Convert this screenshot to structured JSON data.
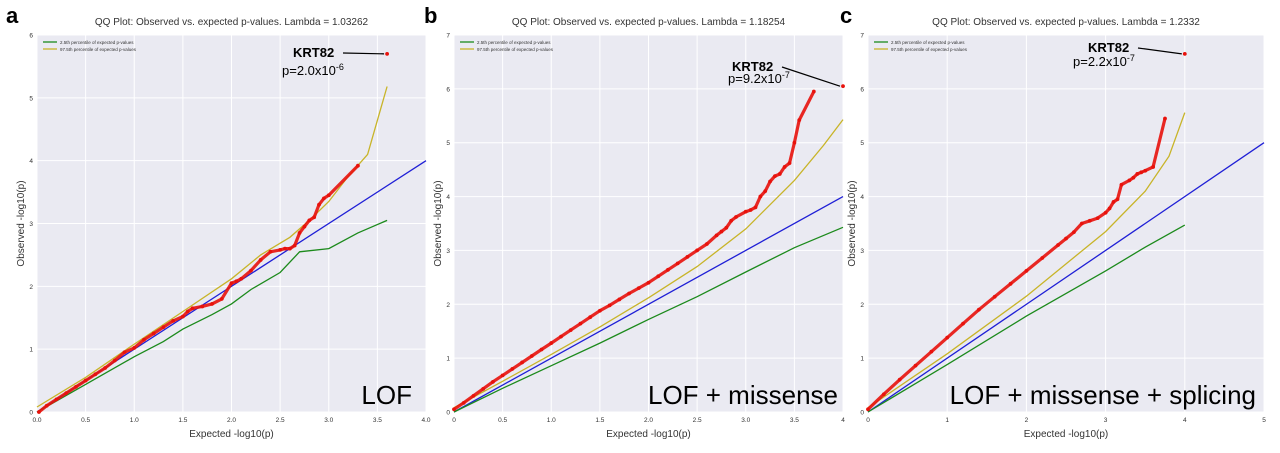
{
  "figure": {
    "panels": [
      {
        "letter": "a",
        "label": "LOF"
      },
      {
        "letter": "b",
        "label": "LOF + missense"
      },
      {
        "letter": "c",
        "label": "LOF + missense + splicing"
      }
    ]
  },
  "colors": {
    "background": "#eaeaf2",
    "grid": "#ffffff",
    "points": "#e8120c",
    "points_edge": "#b30000",
    "expected_line": "#1f1fd6",
    "lower_band": "#1c8a1c",
    "upper_band": "#c8b428",
    "callout_line": "#000000"
  },
  "chart_data": [
    {
      "type": "scatter",
      "title": "QQ Plot: Observed vs. expected p-values. Lambda = 1.03262",
      "xlabel": "Expected -log10(p)",
      "ylabel": "Observed -log10(p)",
      "xlim": [
        0,
        4.0
      ],
      "ylim": [
        0,
        6
      ],
      "xticks": [
        "0.0",
        "0.5",
        "1.0",
        "1.5",
        "2.0",
        "2.5",
        "3.0",
        "3.5",
        "4.0"
      ],
      "yticks": [
        "0",
        "1",
        "2",
        "3",
        "4",
        "5",
        "6"
      ],
      "grid": true,
      "legend": [
        "2.5th percentile of expected p-values",
        "97.5th percentile of expected p-values"
      ],
      "legend_position": "top-left",
      "expected_line": {
        "x": [
          0,
          4.0
        ],
        "y": [
          0,
          4.0
        ]
      },
      "lower_band": {
        "name": "2.5th percentile of expected p-values",
        "x": [
          0,
          0.5,
          1.0,
          1.3,
          1.5,
          1.8,
          2.0,
          2.2,
          2.5,
          2.7,
          3.0,
          3.3,
          3.6
        ],
        "y": [
          0,
          0.44,
          0.88,
          1.12,
          1.32,
          1.55,
          1.72,
          1.95,
          2.22,
          2.55,
          2.6,
          2.85,
          3.05
        ]
      },
      "upper_band": {
        "name": "97.5th percentile of expected p-values",
        "x": [
          0,
          0.5,
          1.0,
          1.5,
          2.0,
          2.3,
          2.6,
          2.8,
          3.0,
          3.2,
          3.4,
          3.6
        ],
        "y": [
          0.08,
          0.55,
          1.08,
          1.6,
          2.12,
          2.5,
          2.78,
          3.05,
          3.35,
          3.75,
          4.1,
          5.18
        ]
      },
      "points": {
        "x": [
          0.02,
          0.1,
          0.2,
          0.3,
          0.4,
          0.5,
          0.6,
          0.7,
          0.8,
          0.9,
          1.0,
          1.1,
          1.2,
          1.3,
          1.4,
          1.5,
          1.55,
          1.6,
          1.7,
          1.8,
          1.9,
          2.0,
          2.05,
          2.1,
          2.2,
          2.3,
          2.4,
          2.5,
          2.55,
          2.6,
          2.65,
          2.7,
          2.75,
          2.8,
          2.85,
          2.9,
          2.95,
          3.0,
          3.3,
          3.6
        ],
        "y": [
          0.0,
          0.1,
          0.2,
          0.3,
          0.4,
          0.5,
          0.6,
          0.7,
          0.82,
          0.95,
          1.02,
          1.15,
          1.25,
          1.35,
          1.45,
          1.52,
          1.6,
          1.65,
          1.68,
          1.72,
          1.8,
          2.05,
          2.08,
          2.12,
          2.25,
          2.42,
          2.55,
          2.58,
          2.6,
          2.6,
          2.65,
          2.85,
          2.95,
          3.05,
          3.1,
          3.3,
          3.4,
          3.45,
          3.92,
          5.7
        ]
      },
      "callout": {
        "gene": "KRT82",
        "p": "p=2.0x10",
        "exp": "-6",
        "point_x": 3.6,
        "point_y": 5.7
      }
    },
    {
      "type": "scatter",
      "title": "QQ Plot: Observed vs. expected p-values. Lambda = 1.18254",
      "xlabel": "Expected -log10(p)",
      "ylabel": "Observed -log10(p)",
      "xlim": [
        0,
        4
      ],
      "ylim": [
        0,
        7
      ],
      "xticks": [
        "0",
        "0.5",
        "1.0",
        "1.5",
        "2.0",
        "2.5",
        "3.0",
        "3.5",
        "4"
      ],
      "yticks": [
        "0",
        "1",
        "2",
        "3",
        "4",
        "5",
        "6",
        "7"
      ],
      "grid": true,
      "legend": [
        "2.5th percentile of expected p-values",
        "97.5th percentile of expected p-values"
      ],
      "legend_position": "top-left",
      "expected_line": {
        "x": [
          0,
          4
        ],
        "y": [
          0,
          4
        ]
      },
      "lower_band": {
        "name": "2.5th percentile of expected p-values",
        "x": [
          0,
          0.5,
          1.0,
          1.5,
          2.0,
          2.5,
          3.0,
          3.5,
          4.0
        ],
        "y": [
          0,
          0.44,
          0.86,
          1.28,
          1.72,
          2.14,
          2.6,
          3.05,
          3.43
        ]
      },
      "upper_band": {
        "name": "97.5th percentile of expected p-values",
        "x": [
          0,
          0.5,
          1.0,
          1.5,
          2.0,
          2.5,
          3.0,
          3.5,
          3.8,
          4.0
        ],
        "y": [
          0.08,
          0.57,
          1.07,
          1.58,
          2.12,
          2.7,
          3.4,
          4.3,
          4.95,
          5.43
        ]
      },
      "points": {
        "x": [
          0.0,
          0.1,
          0.2,
          0.3,
          0.4,
          0.5,
          0.6,
          0.7,
          0.8,
          0.9,
          1.0,
          1.1,
          1.2,
          1.3,
          1.4,
          1.5,
          1.6,
          1.7,
          1.8,
          1.9,
          2.0,
          2.1,
          2.2,
          2.3,
          2.4,
          2.5,
          2.6,
          2.7,
          2.75,
          2.8,
          2.85,
          2.9,
          3.0,
          3.05,
          3.1,
          3.15,
          3.2,
          3.25,
          3.3,
          3.35,
          3.4,
          3.45,
          3.5,
          3.55,
          3.7,
          4.0
        ],
        "y": [
          0.05,
          0.17,
          0.3,
          0.43,
          0.56,
          0.68,
          0.8,
          0.92,
          1.04,
          1.16,
          1.28,
          1.4,
          1.52,
          1.64,
          1.76,
          1.88,
          1.98,
          2.09,
          2.2,
          2.3,
          2.4,
          2.52,
          2.64,
          2.76,
          2.88,
          3.0,
          3.12,
          3.28,
          3.35,
          3.42,
          3.55,
          3.62,
          3.72,
          3.75,
          3.8,
          4.0,
          4.1,
          4.28,
          4.38,
          4.42,
          4.55,
          4.62,
          5.0,
          5.42,
          5.95,
          6.05
        ]
      },
      "callout": {
        "gene": "KRT82",
        "p": "p=9.2x10",
        "exp": "-7",
        "point_x": 4.0,
        "point_y": 6.05
      }
    },
    {
      "type": "scatter",
      "title": "QQ Plot: Observed vs. expected p-values. Lambda = 1.2332",
      "xlabel": "Expected -log10(p)",
      "ylabel": "Observed -log10(p)",
      "xlim": [
        0,
        5
      ],
      "ylim": [
        0,
        7
      ],
      "xticks": [
        "0",
        "1",
        "2",
        "3",
        "4",
        "5"
      ],
      "yticks": [
        "0",
        "1",
        "2",
        "3",
        "4",
        "5",
        "6",
        "7"
      ],
      "grid": true,
      "legend": [
        "2.5th percentile of expected p-values",
        "97.5th percentile of expected p-values"
      ],
      "legend_position": "top-left",
      "expected_line": {
        "x": [
          0,
          5
        ],
        "y": [
          0,
          5
        ]
      },
      "lower_band": {
        "name": "2.5th percentile of expected p-values",
        "x": [
          0,
          1.0,
          2.0,
          3.0,
          3.5,
          4.0
        ],
        "y": [
          0,
          0.88,
          1.78,
          2.62,
          3.06,
          3.47
        ]
      },
      "upper_band": {
        "name": "97.5th percentile of expected p-values",
        "x": [
          0,
          1.0,
          2.0,
          3.0,
          3.5,
          3.8,
          4.0
        ],
        "y": [
          0.08,
          1.08,
          2.15,
          3.35,
          4.1,
          4.75,
          5.56
        ]
      },
      "points": {
        "x": [
          0.0,
          0.2,
          0.4,
          0.6,
          0.8,
          1.0,
          1.2,
          1.4,
          1.6,
          1.8,
          2.0,
          2.2,
          2.4,
          2.5,
          2.6,
          2.7,
          2.8,
          2.9,
          3.0,
          3.05,
          3.1,
          3.15,
          3.2,
          3.3,
          3.35,
          3.4,
          3.45,
          3.5,
          3.6,
          3.75,
          4.0
        ],
        "y": [
          0.05,
          0.33,
          0.6,
          0.86,
          1.12,
          1.38,
          1.64,
          1.9,
          2.14,
          2.38,
          2.62,
          2.86,
          3.1,
          3.22,
          3.34,
          3.5,
          3.55,
          3.6,
          3.7,
          3.78,
          3.9,
          3.95,
          4.22,
          4.3,
          4.35,
          4.42,
          4.45,
          4.48,
          4.55,
          5.45,
          6.65
        ]
      },
      "callout": {
        "gene": "KRT82",
        "p": "p=2.2x10",
        "exp": "-7",
        "point_x": 4.0,
        "point_y": 6.65
      }
    }
  ]
}
